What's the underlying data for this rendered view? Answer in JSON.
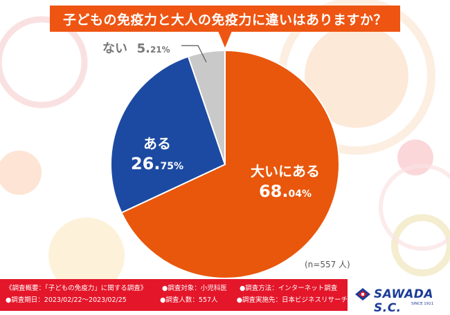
{
  "title": "子どもの免疫力と大人の免疫力に違いはありますか？",
  "chart_data": {
    "type": "pie",
    "title": "子どもの免疫力と大人の免疫力に違いはありますか？",
    "start": "12 o'clock, clockwise",
    "slices": [
      {
        "label": "大いにある",
        "value": 68.04,
        "color": "#e8570c",
        "label_int": "68.",
        "label_dec": "04%"
      },
      {
        "label": "ある",
        "value": 26.75,
        "color": "#1c4aa2",
        "label_int": "26.",
        "label_dec": "75%"
      },
      {
        "label": "ない",
        "value": 5.21,
        "color": "#c9c9c9",
        "label_int": "5.",
        "label_dec": "21%"
      }
    ],
    "note": "(n=557 人)"
  },
  "footer": {
    "line1": [
      "《調査概要：「子どもの免疫力」に関する調査》",
      "●調査対象：小児科医",
      "●調査方法：インターネット調査"
    ],
    "line2": [
      "●調査期日：2023/02/22～2023/02/25",
      "●調査人数：557人",
      "●調査実施先：日本ビジネスリサーチ"
    ]
  },
  "logo": {
    "name": "SAWADA S.C.",
    "since": "SINCE 1911"
  },
  "colors": {
    "title_bg": "#ee5512",
    "footer_bg": "#e4162a",
    "logo": "#1c3c96",
    "deco_orange": "#fbdcc4",
    "deco_pink": "#f9d6d6",
    "deco_gold": "#f6e3b4"
  }
}
